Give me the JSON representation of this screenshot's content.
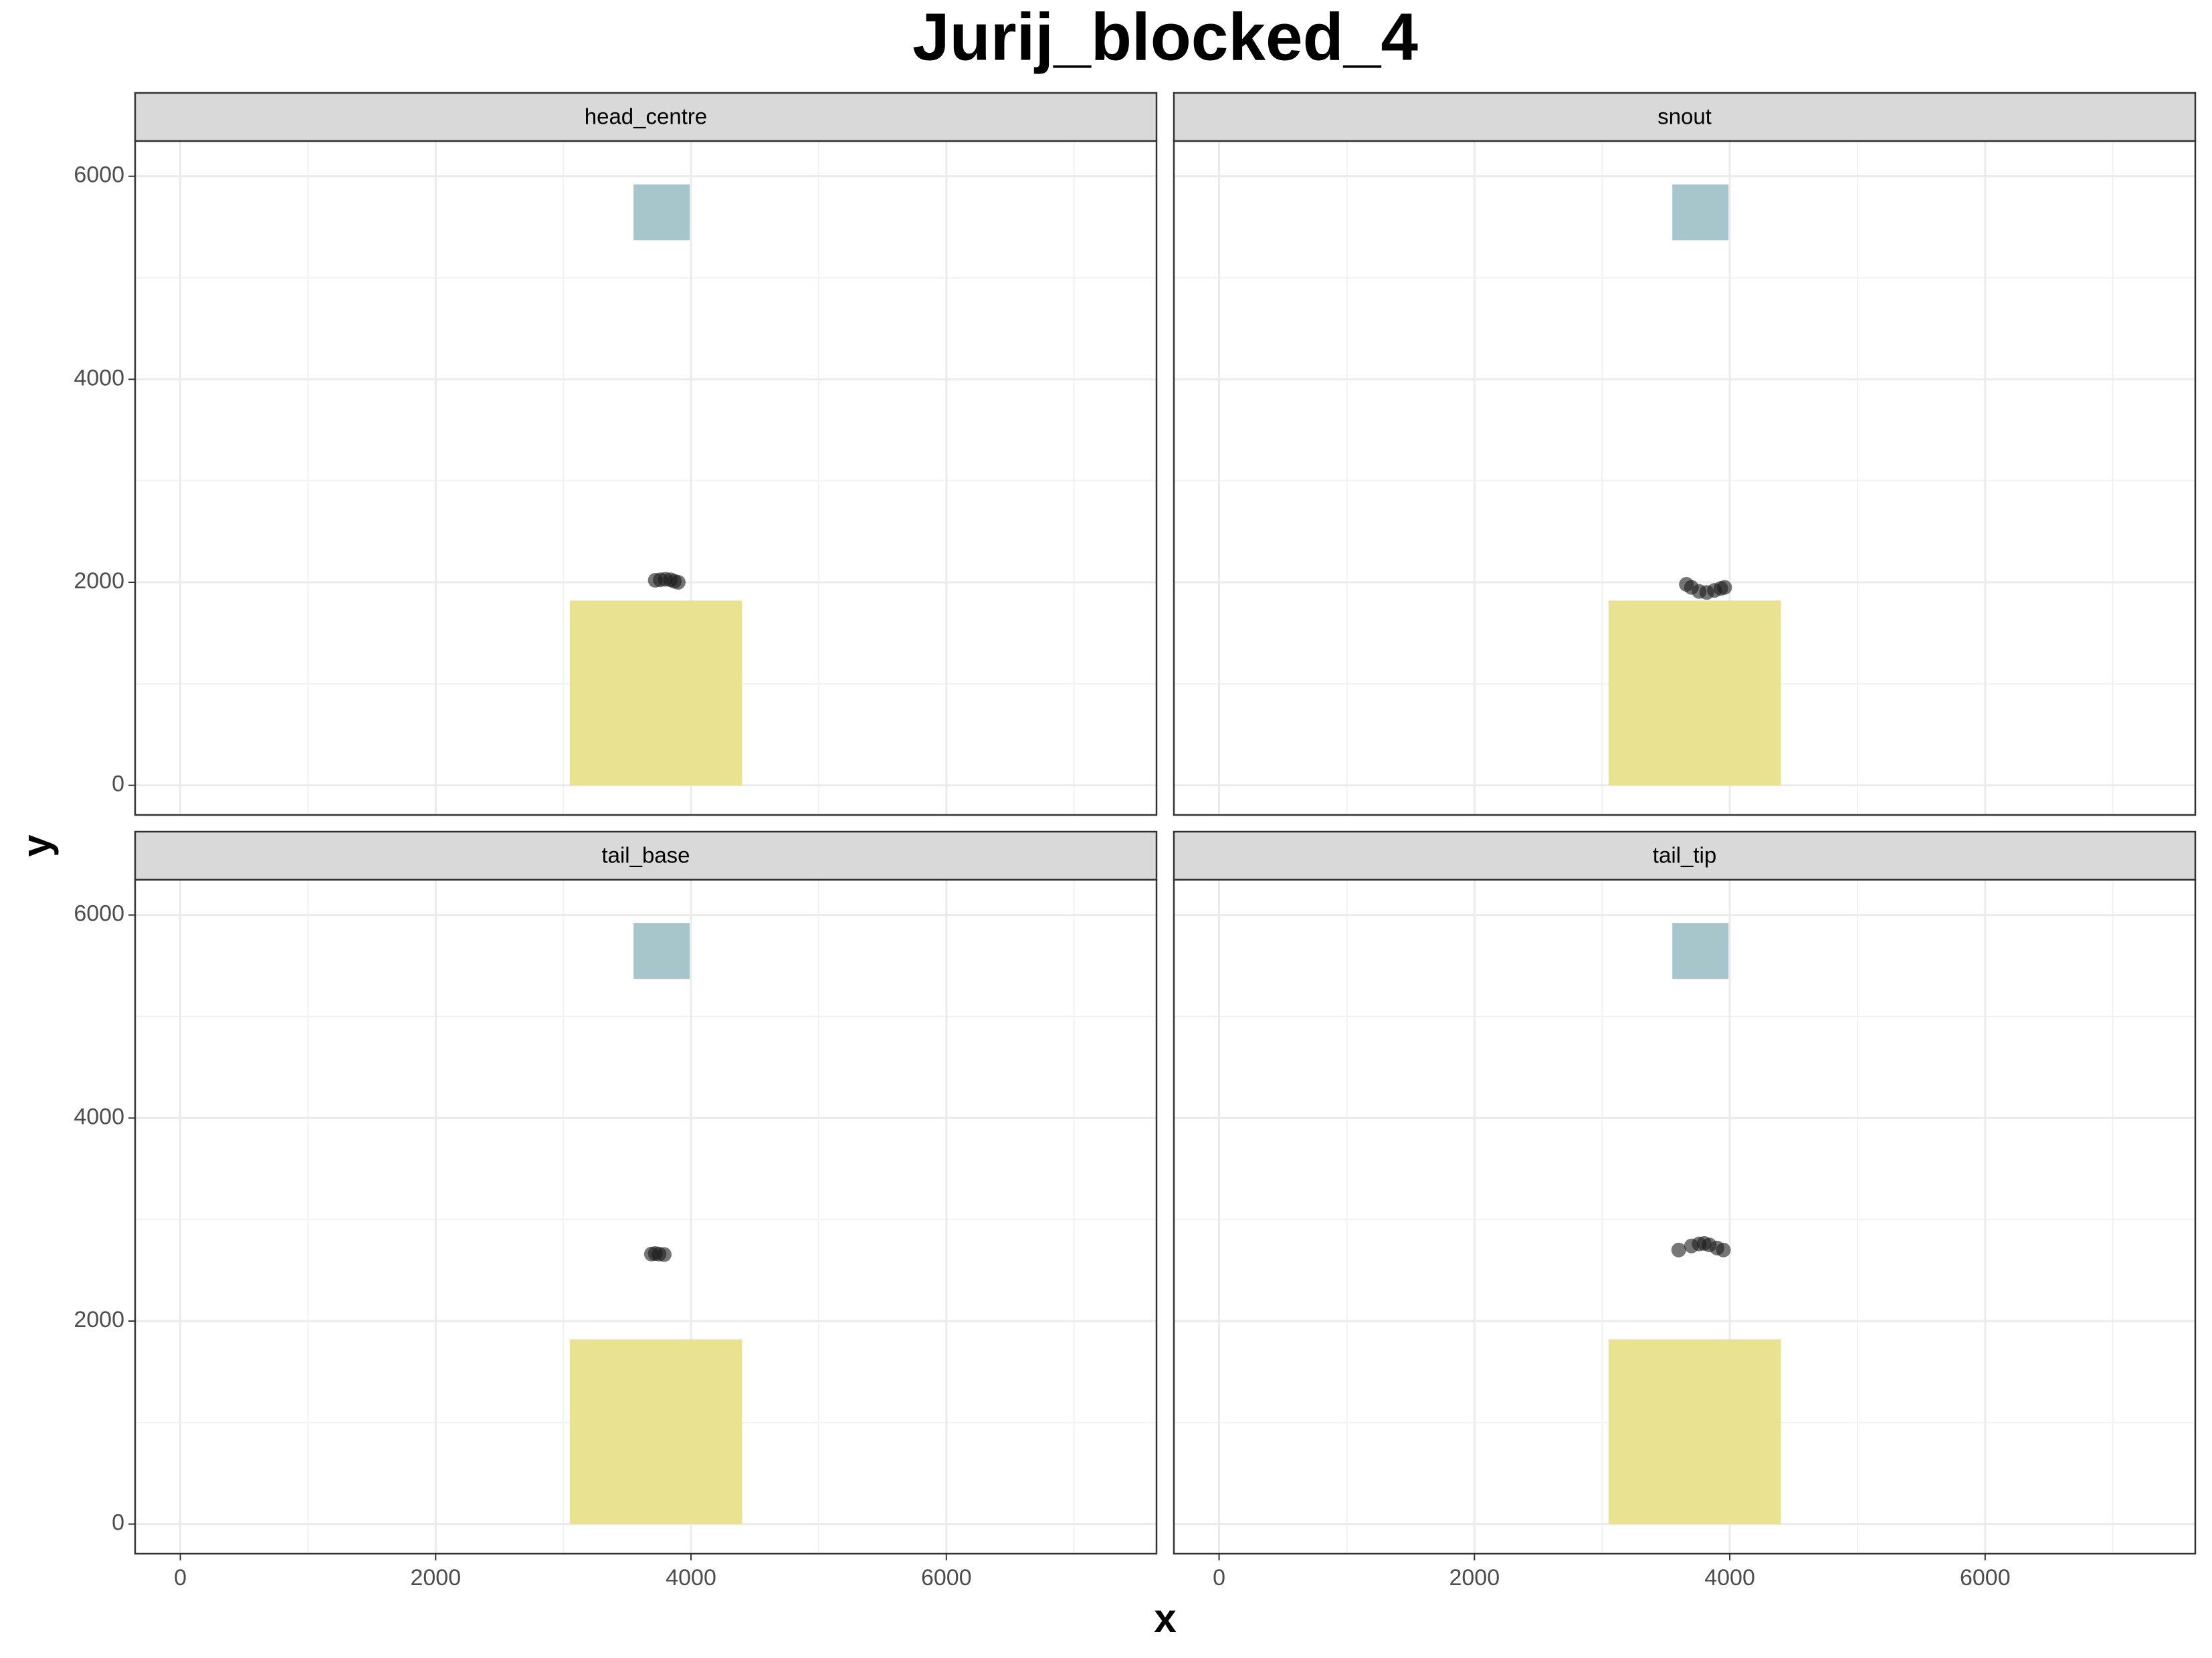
{
  "title": "Jurij_blocked_4",
  "xlabel": "x",
  "ylabel": "y",
  "chart_data": [
    {
      "type": "scatter",
      "title": "head_centre",
      "x": [
        3720,
        3760,
        3800,
        3840,
        3870,
        3900
      ],
      "y": [
        2020,
        2025,
        2030,
        2025,
        2010,
        2000
      ],
      "color": "#1a1a1a",
      "alpha": 0.6,
      "rects": [
        {
          "xmin": 3050,
          "xmax": 4400,
          "ymin": 0,
          "ymax": 1820,
          "color": "#e8e291"
        },
        {
          "xmin": 3550,
          "xmax": 3990,
          "ymin": 5370,
          "ymax": 5920,
          "color": "#a6c6cc"
        }
      ],
      "xlim": [
        -354,
        7646
      ],
      "ylim": [
        -292,
        6347
      ],
      "xticks": [
        0,
        2000,
        4000,
        6000
      ],
      "yticks": [
        0,
        2000,
        4000,
        6000
      ],
      "xminor": [
        1000,
        3000,
        5000,
        7000
      ],
      "yminor": [
        1000,
        3000,
        5000
      ],
      "grid": true
    },
    {
      "type": "scatter",
      "title": "snout",
      "x": [
        3660,
        3700,
        3760,
        3820,
        3880,
        3930,
        3960
      ],
      "y": [
        1980,
        1950,
        1910,
        1900,
        1920,
        1940,
        1950
      ],
      "color": "#1a1a1a",
      "alpha": 0.6,
      "rects": [
        {
          "xmin": 3050,
          "xmax": 4400,
          "ymin": 0,
          "ymax": 1820,
          "color": "#e8e291"
        },
        {
          "xmin": 3550,
          "xmax": 3990,
          "ymin": 5370,
          "ymax": 5920,
          "color": "#a6c6cc"
        }
      ],
      "xlim": [
        -354,
        7646
      ],
      "ylim": [
        -292,
        6347
      ],
      "xticks": [
        0,
        2000,
        4000,
        6000
      ],
      "yticks": [
        0,
        2000,
        4000,
        6000
      ],
      "xminor": [
        1000,
        3000,
        5000,
        7000
      ],
      "yminor": [
        1000,
        3000,
        5000
      ],
      "grid": true
    },
    {
      "type": "scatter",
      "title": "tail_base",
      "x": [
        3690,
        3720,
        3750,
        3790
      ],
      "y": [
        2660,
        2665,
        2660,
        2655
      ],
      "color": "#1a1a1a",
      "alpha": 0.6,
      "rects": [
        {
          "xmin": 3050,
          "xmax": 4400,
          "ymin": 0,
          "ymax": 1820,
          "color": "#e8e291"
        },
        {
          "xmin": 3550,
          "xmax": 3990,
          "ymin": 5370,
          "ymax": 5920,
          "color": "#a6c6cc"
        }
      ],
      "xlim": [
        -354,
        7646
      ],
      "ylim": [
        -292,
        6347
      ],
      "xticks": [
        0,
        2000,
        4000,
        6000
      ],
      "yticks": [
        0,
        2000,
        4000,
        6000
      ],
      "xminor": [
        1000,
        3000,
        5000,
        7000
      ],
      "yminor": [
        1000,
        3000,
        5000
      ],
      "grid": true
    },
    {
      "type": "scatter",
      "title": "tail_tip",
      "x": [
        3600,
        3700,
        3760,
        3800,
        3840,
        3900,
        3950
      ],
      "y": [
        2700,
        2740,
        2760,
        2765,
        2750,
        2720,
        2700
      ],
      "color": "#1a1a1a",
      "alpha": 0.6,
      "rects": [
        {
          "xmin": 3050,
          "xmax": 4400,
          "ymin": 0,
          "ymax": 1820,
          "color": "#e8e291"
        },
        {
          "xmin": 3550,
          "xmax": 3990,
          "ymin": 5370,
          "ymax": 5920,
          "color": "#a6c6cc"
        }
      ],
      "xlim": [
        -354,
        7646
      ],
      "ylim": [
        -292,
        6347
      ],
      "xticks": [
        0,
        2000,
        4000,
        6000
      ],
      "yticks": [
        0,
        2000,
        4000,
        6000
      ],
      "xminor": [
        1000,
        3000,
        5000,
        7000
      ],
      "yminor": [
        1000,
        3000,
        5000
      ],
      "grid": true
    }
  ]
}
